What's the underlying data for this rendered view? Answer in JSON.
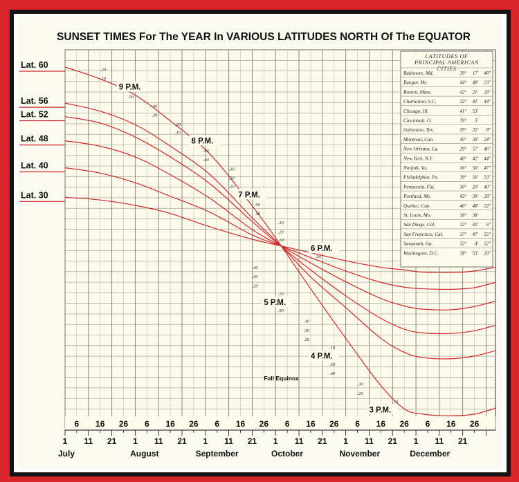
{
  "title": "SUNSET TIMES For The YEAR In VARIOUS LATITUDES NORTH Of The EQUATOR",
  "chart_data": {
    "type": "line",
    "title": "SUNSET TIMES For The YEAR In VARIOUS LATITUDES NORTH Of The EQUATOR",
    "x_unit": "day (July 1 – December 31)",
    "y_unit": "hour (P.M.)",
    "ylim": [
      2.93,
      9.42
    ],
    "grid": true,
    "months": [
      {
        "label": "July",
        "day": 0
      },
      {
        "label": "August",
        "day": 31
      },
      {
        "label": "September",
        "day": 62
      },
      {
        "label": "October",
        "day": 92
      },
      {
        "label": "November",
        "day": 123
      },
      {
        "label": "December",
        "day": 153
      }
    ],
    "day_ticks_top": [
      "6",
      "16",
      "26",
      "6",
      "16",
      "26",
      "6",
      "16",
      "26",
      "6",
      "16",
      "26",
      "6",
      "16",
      "26",
      "6",
      "16",
      "26"
    ],
    "day_ticks_bottom": [
      "1",
      "11",
      "21",
      "1",
      "11",
      "21",
      "1",
      "11",
      "21",
      "1",
      "11",
      "21",
      "1",
      "11",
      "21",
      "1",
      "11",
      "21"
    ],
    "hour_labels": [
      {
        "label": "9 P.M.",
        "day": 23,
        "hour": 9
      },
      {
        "label": "8 P.M.",
        "day": 54,
        "hour": 8
      },
      {
        "label": "7 P.M.",
        "day": 74,
        "hour": 7
      },
      {
        "label": "6 P.M.",
        "day": 105,
        "hour": 6
      },
      {
        "label": "5 P.M.",
        "day": 85,
        "hour": 5
      },
      {
        "label": "4 P.M.",
        "day": 105,
        "hour": 4
      },
      {
        "label": "3 P.M.",
        "day": 130,
        "hour": 3
      }
    ],
    "minute_marks": [
      {
        "text": ".20",
        "day": 15,
        "hour": 9.35
      },
      {
        "text": ".10",
        "day": 15,
        "hour": 9.18
      },
      {
        "text": ".50",
        "day": 27,
        "hour": 8.84
      },
      {
        "text": ".40",
        "day": 37,
        "hour": 8.67
      },
      {
        "text": ".30",
        "day": 37,
        "hour": 8.5
      },
      {
        "text": ".20",
        "day": 47,
        "hour": 8.33
      },
      {
        "text": ".10",
        "day": 47,
        "hour": 8.18
      },
      {
        "text": ".50",
        "day": 59,
        "hour": 7.84
      },
      {
        "text": ".40",
        "day": 59,
        "hour": 7.67
      },
      {
        "text": ".30",
        "day": 70,
        "hour": 7.5
      },
      {
        "text": ".20",
        "day": 70,
        "hour": 7.33
      },
      {
        "text": ".10",
        "day": 70,
        "hour": 7.18
      },
      {
        "text": ".50",
        "day": 81,
        "hour": 6.84
      },
      {
        "text": ".40",
        "day": 81,
        "hour": 6.67
      },
      {
        "text": ".30",
        "day": 91,
        "hour": 6.5
      },
      {
        "text": ".20",
        "day": 91,
        "hour": 6.33
      },
      {
        "text": ".10",
        "day": 91,
        "hour": 6.18
      },
      {
        "text": ".50",
        "day": 107,
        "hour": 5.87
      },
      {
        "text": ".40",
        "day": 80,
        "hour": 5.67
      },
      {
        "text": ".30",
        "day": 80,
        "hour": 5.5
      },
      {
        "text": ".20",
        "day": 80,
        "hour": 5.33
      },
      {
        "text": ".10",
        "day": 91,
        "hour": 5.18
      },
      {
        "text": ".50",
        "day": 91,
        "hour": 4.87
      },
      {
        "text": ".40",
        "day": 102,
        "hour": 4.67
      },
      {
        "text": ".30",
        "day": 102,
        "hour": 4.5
      },
      {
        "text": ".20",
        "day": 102,
        "hour": 4.33
      },
      {
        "text": ".10",
        "day": 113,
        "hour": 4.18
      },
      {
        "text": ".50",
        "day": 113,
        "hour": 3.87
      },
      {
        "text": ".40",
        "day": 113,
        "hour": 3.7
      },
      {
        "text": ".30",
        "day": 125,
        "hour": 3.5
      },
      {
        "text": ".20",
        "day": 125,
        "hour": 3.33
      },
      {
        "text": ".10",
        "day": 140,
        "hour": 3.18
      }
    ],
    "annotations": [
      {
        "text": "Fall Equinox",
        "day": 85,
        "hour": 3.6
      }
    ],
    "series": [
      {
        "name": "Lat. 60",
        "points": [
          [
            0,
            9.42
          ],
          [
            15,
            9.2
          ],
          [
            30,
            8.9
          ],
          [
            45,
            8.42
          ],
          [
            62,
            7.8
          ],
          [
            80,
            6.84
          ],
          [
            92,
            6.12
          ],
          [
            105,
            5.3
          ],
          [
            120,
            4.38
          ],
          [
            135,
            3.5
          ],
          [
            145,
            3.07
          ],
          [
            153,
            2.97
          ],
          [
            165,
            2.94
          ],
          [
            175,
            2.97
          ],
          [
            184,
            3.08
          ]
        ]
      },
      {
        "name": "Lat. 56",
        "points": [
          [
            0,
            8.75
          ],
          [
            15,
            8.6
          ],
          [
            30,
            8.35
          ],
          [
            45,
            7.95
          ],
          [
            62,
            7.42
          ],
          [
            80,
            6.62
          ],
          [
            92,
            6.11
          ],
          [
            105,
            5.52
          ],
          [
            120,
            4.95
          ],
          [
            135,
            4.38
          ],
          [
            145,
            4.12
          ],
          [
            153,
            4.02
          ],
          [
            165,
            4.0
          ],
          [
            175,
            4.05
          ],
          [
            184,
            4.15
          ]
        ]
      },
      {
        "name": "Lat. 52",
        "points": [
          [
            0,
            8.5
          ],
          [
            15,
            8.38
          ],
          [
            30,
            8.12
          ],
          [
            45,
            7.75
          ],
          [
            62,
            7.25
          ],
          [
            80,
            6.55
          ],
          [
            92,
            6.1
          ],
          [
            105,
            5.65
          ],
          [
            120,
            5.17
          ],
          [
            135,
            4.75
          ],
          [
            145,
            4.55
          ],
          [
            153,
            4.48
          ],
          [
            165,
            4.47
          ],
          [
            175,
            4.52
          ],
          [
            184,
            4.62
          ]
        ]
      },
      {
        "name": "Lat. 48",
        "points": [
          [
            0,
            8.05
          ],
          [
            15,
            7.95
          ],
          [
            30,
            7.75
          ],
          [
            45,
            7.42
          ],
          [
            62,
            6.98
          ],
          [
            80,
            6.4
          ],
          [
            92,
            6.1
          ],
          [
            105,
            5.78
          ],
          [
            120,
            5.43
          ],
          [
            135,
            5.12
          ],
          [
            145,
            4.98
          ],
          [
            153,
            4.92
          ],
          [
            165,
            4.91
          ],
          [
            175,
            4.97
          ],
          [
            184,
            5.07
          ]
        ]
      },
      {
        "name": "Lat. 40",
        "points": [
          [
            0,
            7.55
          ],
          [
            15,
            7.45
          ],
          [
            30,
            7.27
          ],
          [
            45,
            7.02
          ],
          [
            62,
            6.72
          ],
          [
            80,
            6.3
          ],
          [
            92,
            6.1
          ],
          [
            105,
            5.88
          ],
          [
            120,
            5.63
          ],
          [
            135,
            5.42
          ],
          [
            145,
            5.33
          ],
          [
            153,
            5.3
          ],
          [
            165,
            5.29
          ],
          [
            175,
            5.32
          ],
          [
            184,
            5.42
          ]
        ]
      },
      {
        "name": "Lat. 30",
        "points": [
          [
            0,
            7.0
          ],
          [
            15,
            6.95
          ],
          [
            30,
            6.85
          ],
          [
            45,
            6.7
          ],
          [
            62,
            6.45
          ],
          [
            80,
            6.22
          ],
          [
            92,
            6.1
          ],
          [
            105,
            5.97
          ],
          [
            120,
            5.82
          ],
          [
            135,
            5.7
          ],
          [
            145,
            5.65
          ],
          [
            153,
            5.61
          ],
          [
            165,
            5.6
          ],
          [
            175,
            5.63
          ],
          [
            184,
            5.7
          ]
        ]
      }
    ],
    "cities_table": {
      "title": [
        "LATITUDES OF",
        "PRINCIPAL AMERICAN",
        "CITIES"
      ],
      "rows": [
        [
          "Baltimore, Md.",
          "39°",
          "17'",
          "48\""
        ],
        [
          "Bangor, Me.",
          "44°",
          "48'",
          "23\""
        ],
        [
          "Boston, Mass.",
          "42°",
          "21'",
          "28\""
        ],
        [
          "Charleston, S.C.",
          "32°",
          "41'",
          "44\""
        ],
        [
          "Chicago, Ill.",
          "41°",
          "53'",
          ""
        ],
        [
          "Cincinnati, O.",
          "39°",
          "5'",
          ""
        ],
        [
          "Galveston, Tex.",
          "29°",
          "22'",
          "8\""
        ],
        [
          "Montreal, Can.",
          "45°",
          "30'",
          "24\""
        ],
        [
          "New Orleans, La.",
          "29°",
          "57'",
          "46\""
        ],
        [
          "New York, N.Y.",
          "40°",
          "42'",
          "44\""
        ],
        [
          "Norfolk, Va.",
          "36°",
          "50'",
          "47\""
        ],
        [
          "Philadelphia, Pa.",
          "39°",
          "56'",
          "53\""
        ],
        [
          "Pensacola, Fla.",
          "30°",
          "20'",
          "40\""
        ],
        [
          "Portland, Me.",
          "43°",
          "39'",
          "28\""
        ],
        [
          "Quebec, Can.",
          "46°",
          "48'",
          "22\""
        ],
        [
          "St. Louis, Mo.",
          "38°",
          "38'",
          ""
        ],
        [
          "San Diego, Cal.",
          "32°",
          "42'",
          "6\""
        ],
        [
          "San Francisco, Cal.",
          "37°",
          "47'",
          "55\""
        ],
        [
          "Savannah, Ga.",
          "32°",
          "4'",
          "52\""
        ],
        [
          "Washington, D.C.",
          "38°",
          "53'",
          "20\""
        ]
      ]
    }
  }
}
